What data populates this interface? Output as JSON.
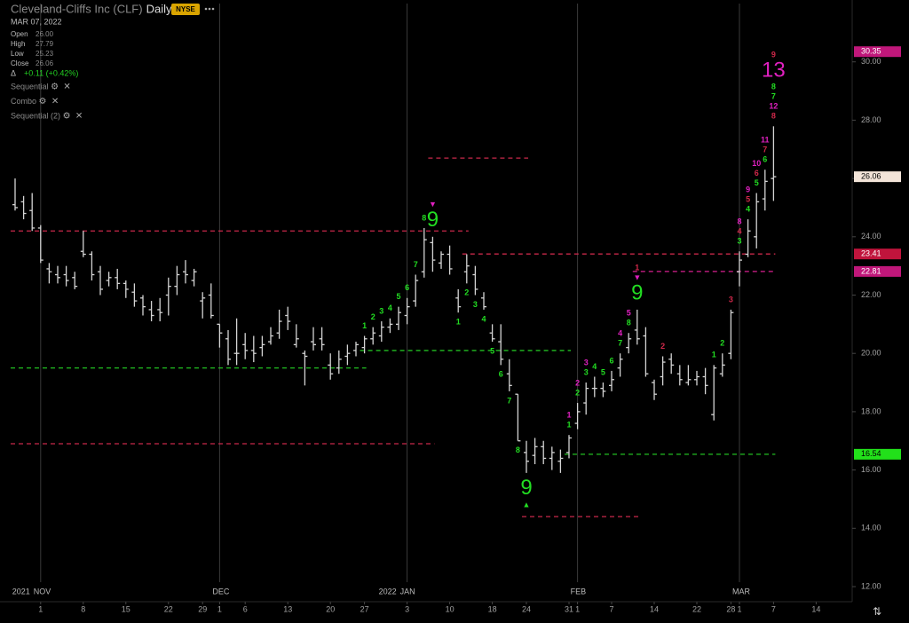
{
  "header": {
    "name": "Cleveland-Cliffs Inc (CLF)",
    "interval": "Daily",
    "exchange": "NYSE",
    "date": "MAR 07, 2022",
    "fields": [
      {
        "label": "Open",
        "value": "26.00"
      },
      {
        "label": "High",
        "value": "27.79"
      },
      {
        "label": "Low",
        "value": "25.23"
      },
      {
        "label": "Close",
        "value": "26.06"
      }
    ],
    "change": {
      "symbol": "Δ",
      "text": "+0.11 (+0.42%)"
    },
    "studies": [
      "Sequential",
      "Combo",
      "Sequential (2)"
    ]
  },
  "chart_data": {
    "type": "ohlc",
    "color": "#d4d4d4",
    "x": [
      "2021-10-27",
      "2021-10-28",
      "2021-10-29",
      "2021-11-01",
      "2021-11-02",
      "2021-11-03",
      "2021-11-04",
      "2021-11-05",
      "2021-11-08",
      "2021-11-09",
      "2021-11-10",
      "2021-11-11",
      "2021-11-12",
      "2021-11-15",
      "2021-11-16",
      "2021-11-17",
      "2021-11-18",
      "2021-11-19",
      "2021-11-22",
      "2021-11-23",
      "2021-11-24",
      "2021-11-26",
      "2021-11-29",
      "2021-11-30",
      "2021-12-01",
      "2021-12-02",
      "2021-12-03",
      "2021-12-06",
      "2021-12-07",
      "2021-12-08",
      "2021-12-09",
      "2021-12-10",
      "2021-12-13",
      "2021-12-14",
      "2021-12-15",
      "2021-12-16",
      "2021-12-17",
      "2021-12-20",
      "2021-12-21",
      "2021-12-22",
      "2021-12-23",
      "2021-12-27",
      "2021-12-28",
      "2021-12-29",
      "2021-12-30",
      "2021-12-31",
      "2022-01-03",
      "2022-01-04",
      "2022-01-05",
      "2022-01-06",
      "2022-01-07",
      "2022-01-10",
      "2022-01-11",
      "2022-01-12",
      "2022-01-13",
      "2022-01-14",
      "2022-01-18",
      "2022-01-19",
      "2022-01-20",
      "2022-01-21",
      "2022-01-24",
      "2022-01-25",
      "2022-01-26",
      "2022-01-27",
      "2022-01-28",
      "2022-01-31",
      "2022-02-01",
      "2022-02-02",
      "2022-02-03",
      "2022-02-04",
      "2022-02-07",
      "2022-02-08",
      "2022-02-09",
      "2022-02-10",
      "2022-02-11",
      "2022-02-14",
      "2022-02-15",
      "2022-02-16",
      "2022-02-17",
      "2022-02-18",
      "2022-02-22",
      "2022-02-23",
      "2022-02-24",
      "2022-02-25",
      "2022-02-28",
      "2022-03-01",
      "2022-03-02",
      "2022-03-03",
      "2022-03-04",
      "2022-03-07"
    ],
    "open": [
      25.1,
      25.2,
      24.9,
      24.3,
      22.9,
      22.7,
      22.7,
      22.6,
      23.5,
      23.4,
      22.8,
      22.5,
      22.6,
      22.4,
      22.1,
      21.9,
      21.5,
      21.5,
      22.0,
      22.3,
      22.8,
      22.5,
      21.8,
      22.0,
      21.0,
      20.5,
      20.0,
      20.3,
      20.1,
      20.2,
      20.4,
      20.7,
      21.3,
      20.3,
      20.0,
      20.4,
      20.5,
      19.6,
      19.5,
      19.9,
      20.1,
      20.2,
      20.5,
      20.6,
      20.9,
      21.0,
      21.3,
      21.8,
      22.8,
      23.8,
      23.1,
      23.4,
      21.9,
      22.8,
      22.7,
      21.9,
      20.7,
      20.4,
      19.3,
      18.6,
      16.6,
      16.5,
      16.8,
      16.4,
      16.3,
      16.6,
      17.6,
      18.3,
      18.8,
      18.8,
      18.9,
      19.5,
      20.2,
      20.8,
      20.6,
      19.0,
      19.2,
      19.8,
      19.3,
      19.0,
      19.1,
      19.2,
      17.9,
      19.3,
      20.0,
      22.8,
      23.4,
      24.0,
      25.3,
      26.0
    ],
    "high": [
      26.0,
      25.4,
      25.5,
      24.4,
      23.1,
      23.0,
      23.0,
      22.8,
      24.2,
      23.5,
      23.0,
      22.8,
      22.9,
      22.5,
      22.4,
      22.0,
      21.8,
      21.9,
      22.6,
      23.0,
      23.2,
      22.9,
      22.1,
      22.4,
      21.0,
      20.8,
      21.2,
      20.7,
      20.6,
      20.6,
      20.9,
      21.5,
      21.6,
      21.0,
      20.1,
      20.9,
      20.9,
      20.0,
      20.1,
      20.3,
      20.4,
      20.6,
      20.9,
      21.1,
      21.2,
      21.6,
      21.9,
      22.7,
      24.3,
      24.0,
      23.5,
      23.7,
      22.2,
      23.4,
      23.0,
      22.1,
      21.0,
      21.0,
      19.8,
      18.6,
      17.0,
      17.1,
      17.0,
      16.8,
      16.7,
      17.2,
      18.3,
      19.0,
      19.2,
      19.0,
      19.4,
      20.0,
      20.7,
      21.5,
      20.9,
      19.1,
      19.9,
      20.0,
      19.6,
      19.6,
      19.4,
      19.5,
      19.6,
      20.0,
      21.5,
      23.5,
      24.6,
      25.5,
      26.3,
      27.79
    ],
    "low": [
      24.9,
      24.6,
      24.2,
      23.1,
      22.4,
      22.4,
      22.3,
      22.2,
      23.3,
      22.5,
      22.0,
      22.3,
      22.2,
      21.9,
      21.6,
      21.3,
      21.1,
      21.1,
      21.3,
      22.0,
      22.4,
      22.3,
      21.2,
      21.2,
      20.2,
      19.6,
      19.6,
      19.8,
      19.7,
      19.9,
      20.3,
      20.5,
      20.8,
      20.2,
      18.9,
      20.1,
      20.1,
      19.1,
      19.3,
      19.6,
      19.9,
      20.0,
      20.3,
      20.4,
      20.7,
      20.8,
      21.0,
      21.6,
      22.6,
      22.8,
      22.9,
      22.7,
      21.4,
      22.4,
      22.0,
      21.5,
      20.4,
      19.6,
      18.7,
      17.0,
      15.9,
      16.2,
      16.2,
      16.0,
      15.9,
      16.4,
      17.4,
      17.9,
      18.5,
      18.5,
      18.7,
      19.2,
      20.0,
      20.3,
      19.2,
      18.4,
      18.9,
      19.3,
      18.9,
      18.9,
      18.9,
      18.6,
      17.7,
      19.2,
      19.8,
      22.3,
      23.3,
      23.6,
      24.9,
      25.23
    ],
    "close": [
      25.0,
      24.8,
      24.3,
      23.2,
      22.8,
      22.6,
      22.5,
      22.3,
      23.4,
      22.7,
      22.2,
      22.6,
      22.4,
      22.2,
      21.8,
      21.6,
      21.3,
      21.4,
      22.3,
      22.7,
      22.7,
      22.8,
      21.9,
      21.3,
      20.7,
      19.8,
      20.0,
      20.1,
      20.0,
      20.3,
      20.6,
      21.1,
      21.1,
      20.5,
      19.9,
      20.3,
      20.3,
      19.3,
      19.8,
      20.0,
      20.3,
      20.5,
      20.7,
      20.9,
      21.0,
      21.4,
      21.6,
      22.5,
      23.9,
      23.2,
      23.4,
      22.9,
      21.6,
      23.0,
      22.2,
      21.6,
      20.5,
      19.8,
      18.9,
      17.0,
      16.3,
      16.8,
      16.4,
      16.6,
      16.4,
      17.1,
      18.0,
      18.8,
      18.8,
      18.7,
      19.1,
      19.8,
      20.5,
      20.5,
      19.3,
      18.6,
      19.7,
      19.6,
      19.1,
      19.1,
      19.2,
      18.9,
      19.5,
      19.6,
      21.4,
      23.2,
      24.2,
      25.2,
      25.9,
      26.06
    ],
    "ylim": [
      12,
      32
    ],
    "yticks": [
      {
        "value": 12,
        "label": "12.00"
      },
      {
        "value": 14,
        "label": "14.00"
      },
      {
        "value": 16,
        "label": "16.00"
      },
      {
        "value": 18,
        "label": "18.00"
      },
      {
        "value": 20,
        "label": "20.00"
      },
      {
        "value": 22,
        "label": "22.00"
      },
      {
        "value": 24,
        "label": "24.00"
      },
      {
        "value": 26,
        "label": "26.00"
      },
      {
        "value": 28,
        "label": "28.00"
      },
      {
        "value": 30,
        "label": "30.00"
      }
    ],
    "month_ticks": [
      {
        "value": "2021-11-01",
        "label": "NOV"
      },
      {
        "value": "2021-12-01",
        "label": "DEC"
      },
      {
        "value": "2022-01-03",
        "label": "JAN"
      },
      {
        "value": "2022-02-01",
        "label": "FEB"
      },
      {
        "value": "2022-03-01",
        "label": "MAR"
      }
    ],
    "year_labels": [
      {
        "value": "2021-11-01",
        "label": "2021"
      },
      {
        "value": "2022-01-03",
        "label": "2022"
      }
    ],
    "xticks": [
      {
        "value": "2021-11-01",
        "label": "1"
      },
      {
        "value": "2021-11-08",
        "label": "8"
      },
      {
        "value": "2021-11-15",
        "label": "15"
      },
      {
        "value": "2021-11-22",
        "label": "22"
      },
      {
        "value": "2021-11-29",
        "label": "29"
      },
      {
        "value": "2021-12-01",
        "label": "1"
      },
      {
        "value": "2021-12-06",
        "label": "6"
      },
      {
        "value": "2021-12-13",
        "label": "13"
      },
      {
        "value": "2021-12-20",
        "label": "20"
      },
      {
        "value": "2021-12-27",
        "label": "27"
      },
      {
        "value": "2022-01-03",
        "label": "3"
      },
      {
        "value": "2022-01-10",
        "label": "10"
      },
      {
        "value": "2022-01-18",
        "label": "18"
      },
      {
        "value": "2022-01-24",
        "label": "24"
      },
      {
        "value": "2022-01-31",
        "label": "31"
      },
      {
        "value": "2022-02-01",
        "label": "1"
      },
      {
        "value": "2022-02-07",
        "label": "7"
      },
      {
        "value": "2022-02-14",
        "label": "14"
      },
      {
        "value": "2022-02-22",
        "label": "22"
      },
      {
        "value": "2022-02-28",
        "label": "28"
      },
      {
        "value": "2022-03-01",
        "label": "1"
      },
      {
        "value": "2022-03-07",
        "label": "7"
      },
      {
        "value": "2022-03-14",
        "label": "14"
      }
    ],
    "levels": [
      {
        "value": 24.2,
        "from": "2021-10-27",
        "to": "2022-01-12",
        "color": "#c8284a"
      },
      {
        "value": 16.9,
        "from": "2021-10-27",
        "to": "2022-01-06",
        "color": "#c8284a"
      },
      {
        "value": 26.7,
        "from": "2022-01-06",
        "to": "2022-01-24",
        "color": "#c8284a"
      },
      {
        "value": 23.41,
        "from": "2022-01-12",
        "to": "2022-03-07",
        "color": "#c8284a"
      },
      {
        "value": 14.4,
        "from": "2022-01-24",
        "to": "2022-02-10",
        "color": "#c8284a"
      },
      {
        "value": 22.81,
        "from": "2022-02-10",
        "to": "2022-03-07",
        "color": "#d8208f"
      },
      {
        "value": 19.5,
        "from": "2021-10-27",
        "to": "2021-12-27",
        "color": "#22c022"
      },
      {
        "value": 20.1,
        "from": "2021-12-27",
        "to": "2022-01-31",
        "color": "#22c022"
      },
      {
        "value": 16.54,
        "from": "2022-01-31",
        "to": "2022-03-07",
        "color": "#22c022"
      }
    ],
    "price_labels": [
      {
        "value": 30.35,
        "color": "#c0177a",
        "text_color": "#ffffff"
      },
      {
        "value": 26.06,
        "color": "#f3e4d8",
        "text_color": "#000000"
      },
      {
        "value": 23.41,
        "color": "#c0143c",
        "text_color": "#ffffff"
      },
      {
        "value": 22.81,
        "color": "#c0177a",
        "text_color": "#ffffff"
      },
      {
        "value": 16.54,
        "color": "#22e01a",
        "text_color": "#000000"
      }
    ],
    "annotations": [
      {
        "text": "1",
        "at": "2021-12-27",
        "side": "above",
        "color": "#22dd22"
      },
      {
        "text": "2",
        "at": "2021-12-28",
        "side": "above",
        "color": "#22dd22"
      },
      {
        "text": "3",
        "at": "2021-12-29",
        "side": "above",
        "color": "#22dd22"
      },
      {
        "text": "4",
        "at": "2021-12-30",
        "side": "above",
        "color": "#22dd22"
      },
      {
        "text": "5",
        "at": "2021-12-31",
        "side": "above",
        "color": "#22dd22"
      },
      {
        "text": "6",
        "at": "2022-01-03",
        "side": "above",
        "color": "#22dd22"
      },
      {
        "text": "7",
        "at": "2022-01-04",
        "side": "above",
        "color": "#22dd22"
      },
      {
        "text": "8",
        "at": "2022-01-05",
        "side": "above",
        "color": "#22dd22"
      },
      {
        "text": "9",
        "at": "2022-01-06",
        "side": "above",
        "color": "#22dd22",
        "large": true
      },
      {
        "text": "▼",
        "at": "2022-01-06",
        "side": "above",
        "color": "#e020c0"
      },
      {
        "text": "1",
        "at": "2022-01-11",
        "side": "below",
        "color": "#22dd22"
      },
      {
        "text": "2",
        "at": "2022-01-12",
        "side": "below",
        "color": "#22dd22"
      },
      {
        "text": "3",
        "at": "2022-01-13",
        "side": "below",
        "color": "#22dd22"
      },
      {
        "text": "4",
        "at": "2022-01-14",
        "side": "below",
        "color": "#22dd22"
      },
      {
        "text": "5",
        "at": "2022-01-18",
        "side": "below",
        "color": "#22dd22"
      },
      {
        "text": "6",
        "at": "2022-01-19",
        "side": "below",
        "color": "#22dd22"
      },
      {
        "text": "7",
        "at": "2022-01-20",
        "side": "below",
        "color": "#22dd22"
      },
      {
        "text": "8",
        "at": "2022-01-21",
        "side": "below",
        "color": "#22dd22"
      },
      {
        "text": "9",
        "at": "2022-01-24",
        "side": "below",
        "color": "#22dd22",
        "large": true
      },
      {
        "text": "▲",
        "at": "2022-01-24",
        "side": "below",
        "color": "#22dd22"
      },
      {
        "text": "1",
        "at": "2022-01-31",
        "side": "above",
        "color": "#22dd22"
      },
      {
        "text": "1",
        "at": "2022-01-31",
        "side": "above",
        "color": "#e020c0"
      },
      {
        "text": "2",
        "at": "2022-02-01",
        "side": "above",
        "color": "#22dd22"
      },
      {
        "text": "2",
        "at": "2022-02-01",
        "side": "above",
        "color": "#e020c0"
      },
      {
        "text": "3",
        "at": "2022-02-02",
        "side": "above",
        "color": "#22dd22"
      },
      {
        "text": "3",
        "at": "2022-02-02",
        "side": "above",
        "color": "#e020c0"
      },
      {
        "text": "4",
        "at": "2022-02-03",
        "side": "above",
        "color": "#22dd22"
      },
      {
        "text": "5",
        "at": "2022-02-04",
        "side": "above",
        "color": "#22dd22"
      },
      {
        "text": "6",
        "at": "2022-02-07",
        "side": "above",
        "color": "#22dd22"
      },
      {
        "text": "7",
        "at": "2022-02-08",
        "side": "above",
        "color": "#22dd22"
      },
      {
        "text": "4",
        "at": "2022-02-08",
        "side": "above",
        "color": "#e020c0"
      },
      {
        "text": "8",
        "at": "2022-02-09",
        "side": "above",
        "color": "#22dd22"
      },
      {
        "text": "5",
        "at": "2022-02-09",
        "side": "above",
        "color": "#e020c0"
      },
      {
        "text": "9",
        "at": "2022-02-10",
        "side": "above",
        "color": "#22dd22",
        "large": true
      },
      {
        "text": "▼",
        "at": "2022-02-10",
        "side": "above",
        "color": "#e020c0"
      },
      {
        "text": "1",
        "at": "2022-02-10",
        "side": "above",
        "color": "#d0284a"
      },
      {
        "text": "2",
        "at": "2022-02-15",
        "side": "above",
        "color": "#d0284a"
      },
      {
        "text": "1",
        "at": "2022-02-24",
        "side": "above",
        "color": "#22dd22"
      },
      {
        "text": "2",
        "at": "2022-02-25",
        "side": "above",
        "color": "#22dd22"
      },
      {
        "text": "3",
        "at": "2022-02-28",
        "side": "above",
        "color": "#d0284a"
      },
      {
        "text": "3",
        "at": "2022-03-01",
        "side": "above",
        "color": "#22dd22"
      },
      {
        "text": "4",
        "at": "2022-03-01",
        "side": "above",
        "color": "#d0284a"
      },
      {
        "text": "8",
        "at": "2022-03-01",
        "side": "above",
        "color": "#e020c0"
      },
      {
        "text": "4",
        "at": "2022-03-02",
        "side": "above",
        "color": "#22dd22"
      },
      {
        "text": "5",
        "at": "2022-03-02",
        "side": "above",
        "color": "#d0284a"
      },
      {
        "text": "9",
        "at": "2022-03-02",
        "side": "above",
        "color": "#e020c0"
      },
      {
        "text": "5",
        "at": "2022-03-03",
        "side": "above",
        "color": "#22dd22"
      },
      {
        "text": "6",
        "at": "2022-03-03",
        "side": "above",
        "color": "#d0284a"
      },
      {
        "text": "10",
        "at": "2022-03-03",
        "side": "above",
        "color": "#e020c0"
      },
      {
        "text": "6",
        "at": "2022-03-04",
        "side": "above",
        "color": "#22dd22"
      },
      {
        "text": "7",
        "at": "2022-03-04",
        "side": "above",
        "color": "#d0284a"
      },
      {
        "text": "11",
        "at": "2022-03-04",
        "side": "above",
        "color": "#e020c0"
      },
      {
        "text": "8",
        "at": "2022-03-07",
        "side": "above",
        "color": "#d0284a"
      },
      {
        "text": "12",
        "at": "2022-03-07",
        "side": "above",
        "color": "#e020c0"
      },
      {
        "text": "7",
        "at": "2022-03-07",
        "side": "above",
        "color": "#22dd22"
      },
      {
        "text": "8",
        "at": "2022-03-07",
        "side": "above",
        "color": "#22dd22"
      },
      {
        "text": "13",
        "at": "2022-03-07",
        "side": "above",
        "color": "#e020c0",
        "large": true
      },
      {
        "text": "9",
        "at": "2022-03-07",
        "side": "above",
        "color": "#d0284a"
      }
    ]
  }
}
